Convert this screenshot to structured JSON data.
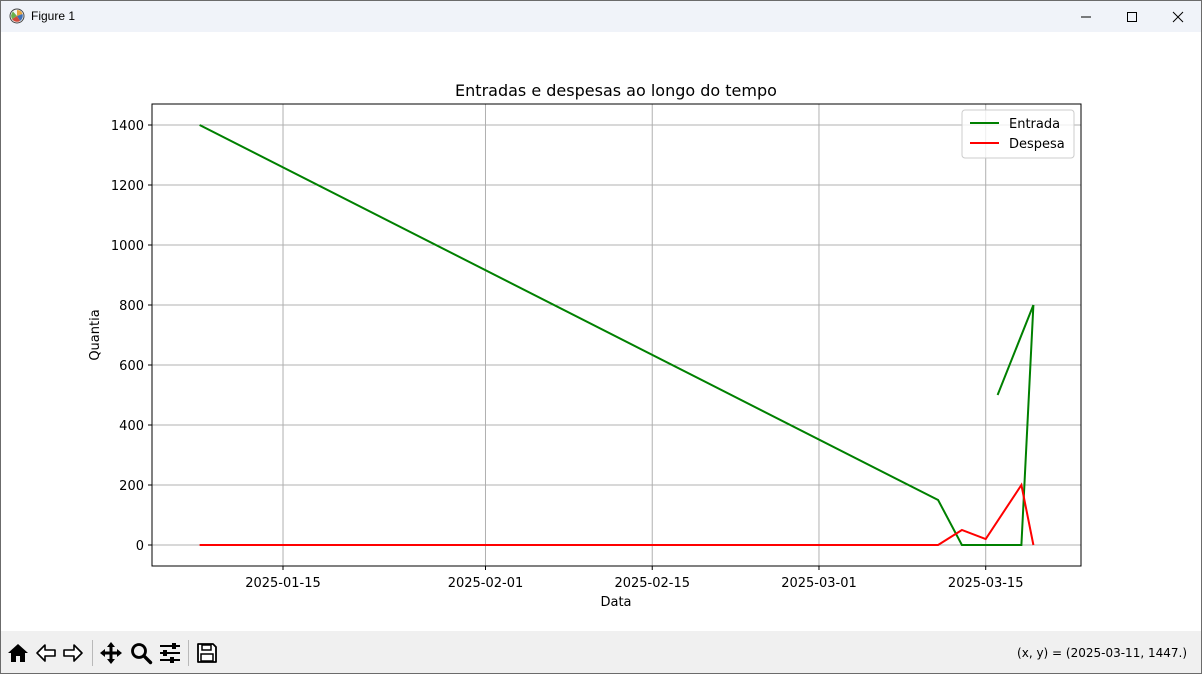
{
  "window": {
    "title": "Figure 1",
    "minimize_icon": "minimize-icon",
    "maximize_icon": "maximize-icon",
    "close_icon": "close-icon"
  },
  "toolbar": {
    "buttons": [
      {
        "name": "home",
        "icon": "home-icon"
      },
      {
        "name": "back",
        "icon": "back-arrow-icon"
      },
      {
        "name": "forward",
        "icon": "forward-arrow-icon"
      },
      {
        "name": "pan",
        "icon": "move-icon"
      },
      {
        "name": "zoom",
        "icon": "magnifier-icon"
      },
      {
        "name": "configure",
        "icon": "sliders-icon"
      },
      {
        "name": "save",
        "icon": "floppy-disk-icon"
      }
    ],
    "coords_text": "(x, y) = (2025-03-11, 1447.)"
  },
  "chart_data": {
    "type": "line",
    "title": "Entradas e despesas ao longo do tempo",
    "xlabel": "Data",
    "ylabel": "Quantia",
    "xlim": [
      "2025-01-04",
      "2025-03-23"
    ],
    "ylim": [
      -70,
      1470
    ],
    "x_ticks": [
      "2025-01-15",
      "2025-02-01",
      "2025-02-15",
      "2025-03-01",
      "2025-03-15"
    ],
    "y_ticks": [
      0,
      200,
      400,
      600,
      800,
      1000,
      1200,
      1400
    ],
    "grid": true,
    "legend_position": "top-right",
    "series": [
      {
        "name": "Entrada",
        "color": "#008000",
        "segments": [
          [
            [
              "2025-01-08",
              1400
            ],
            [
              "2025-03-11",
              150
            ],
            [
              "2025-03-13",
              0
            ],
            [
              "2025-03-18",
              0
            ],
            [
              "2025-03-19",
              800
            ]
          ],
          [
            [
              "2025-03-16",
              500
            ],
            [
              "2025-03-19",
              800
            ]
          ]
        ]
      },
      {
        "name": "Despesa",
        "color": "#ff0000",
        "segments": [
          [
            [
              "2025-01-08",
              0
            ],
            [
              "2025-03-11",
              0
            ],
            [
              "2025-03-13",
              50
            ],
            [
              "2025-03-15",
              20
            ],
            [
              "2025-03-18",
              200
            ],
            [
              "2025-03-19",
              0
            ]
          ]
        ]
      }
    ]
  }
}
